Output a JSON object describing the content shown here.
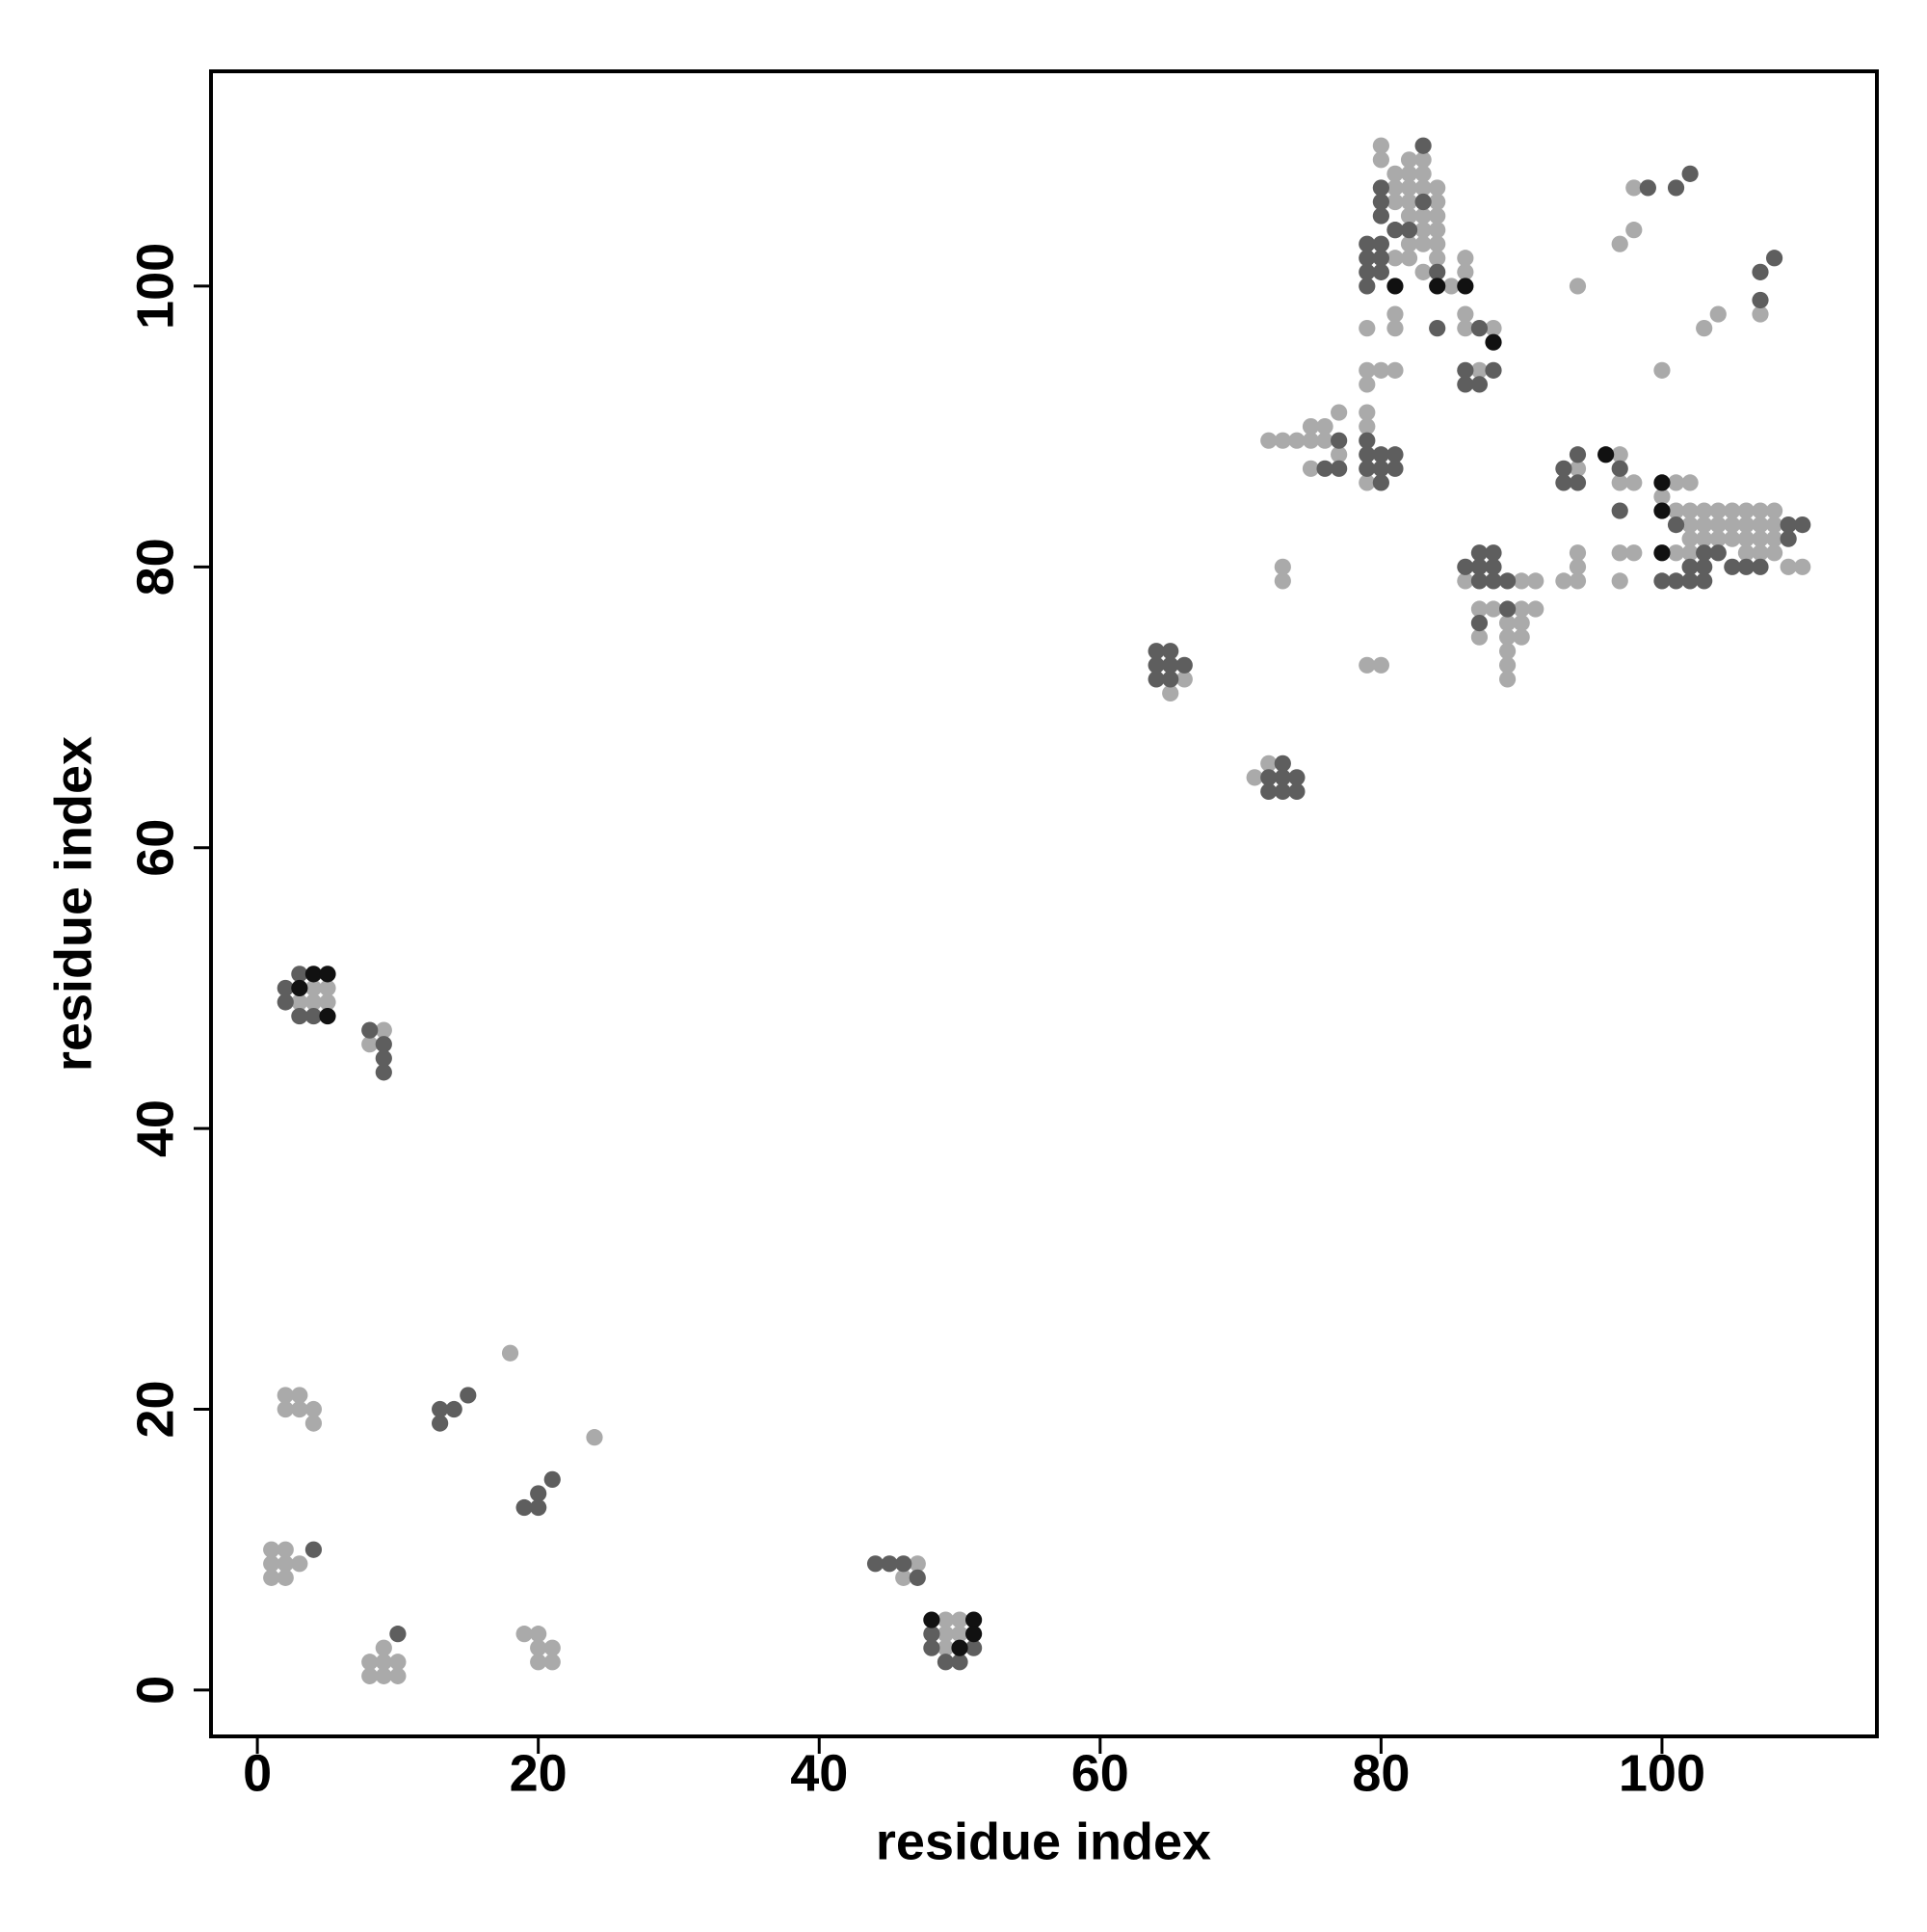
{
  "chart_data": {
    "type": "scatter",
    "x_label": "residue index",
    "y_label": "residue index",
    "xlim": [
      -3.3,
      115.3
    ],
    "ylim": [
      -3.3,
      115.3
    ],
    "xticks": [
      0,
      20,
      40,
      60,
      80,
      100
    ],
    "yticks": [
      0,
      20,
      40,
      60,
      80,
      100
    ],
    "grid": false,
    "series": [
      {
        "color": "#aaaaaa",
        "x": [
          1,
          2,
          1,
          2,
          3,
          1,
          2,
          2,
          3,
          2,
          3,
          4,
          4,
          18,
          24,
          8,
          9,
          10,
          8,
          9,
          10,
          9,
          19,
          20,
          20,
          21,
          20,
          21,
          3,
          4,
          5,
          4,
          5,
          9,
          8,
          47,
          46,
          49,
          50,
          49,
          50,
          49,
          66,
          65,
          71,
          72,
          73,
          73,
          79,
          80,
          72,
          73,
          74,
          75,
          75,
          76,
          77,
          76,
          77,
          75,
          79,
          79,
          79,
          79,
          80,
          81,
          79,
          79,
          81,
          81,
          80,
          80,
          82,
          83,
          81,
          82,
          83,
          84,
          81,
          82,
          83,
          81,
          82,
          84,
          82,
          83,
          84,
          81,
          83,
          84,
          82,
          83,
          84,
          81,
          82,
          84,
          83,
          85,
          86,
          86,
          86,
          86,
          88,
          87,
          86,
          90,
          91,
          87,
          88,
          90,
          91,
          89,
          90,
          87,
          89,
          90,
          89,
          89,
          89,
          94,
          93,
          94,
          94,
          94,
          97,
          97,
          98,
          97,
          98,
          97,
          94,
          97,
          98,
          98,
          100,
          103,
          104,
          107,
          101,
          102,
          100,
          101,
          102,
          103,
          104,
          105,
          106,
          107,
          108,
          102,
          103,
          104,
          105,
          106,
          107,
          108,
          102,
          103,
          104,
          105,
          106,
          107,
          108,
          101,
          102,
          106,
          107,
          108,
          109,
          110
        ],
        "y": [
          10,
          10,
          9,
          9,
          9,
          8,
          8,
          21,
          21,
          20,
          20,
          20,
          19,
          24,
          18,
          2,
          2,
          2,
          1,
          1,
          1,
          3,
          4,
          4,
          3,
          3,
          2,
          2,
          49,
          50,
          50,
          49,
          49,
          47,
          46,
          9,
          8,
          5,
          5,
          4,
          4,
          3,
          72,
          71,
          65,
          66,
          80,
          79,
          73,
          73,
          89,
          89,
          89,
          89,
          90,
          90,
          91,
          89,
          88,
          87,
          91,
          90,
          86,
          94,
          94,
          94,
          93,
          97,
          97,
          98,
          110,
          109,
          109,
          109,
          108,
          108,
          108,
          107,
          107,
          107,
          107,
          106,
          106,
          106,
          105,
          105,
          105,
          104,
          104,
          104,
          103,
          103,
          103,
          102,
          102,
          102,
          101,
          100,
          102,
          101,
          98,
          97,
          97,
          94,
          79,
          79,
          79,
          77,
          77,
          77,
          77,
          76,
          76,
          75,
          75,
          75,
          74,
          73,
          72,
          87,
          79,
          79,
          80,
          81,
          88,
          86,
          86,
          81,
          81,
          79,
          100,
          103,
          104,
          107,
          94,
          97,
          98,
          98,
          86,
          86,
          85,
          84,
          84,
          84,
          84,
          84,
          84,
          84,
          84,
          83,
          83,
          83,
          83,
          83,
          83,
          83,
          82,
          82,
          82,
          82,
          82,
          82,
          82,
          81,
          81,
          81,
          81,
          81,
          80,
          80
        ]
      },
      {
        "color": "#5e5e5e",
        "x": [
          4,
          13,
          14,
          13,
          15,
          19,
          20,
          20,
          21,
          10,
          2,
          2,
          3,
          3,
          4,
          8,
          9,
          9,
          9,
          44,
          45,
          46,
          47,
          48,
          48,
          51,
          49,
          50,
          64,
          65,
          64,
          65,
          66,
          64,
          65,
          73,
          72,
          73,
          74,
          72,
          73,
          74,
          77,
          77,
          76,
          79,
          79,
          80,
          81,
          79,
          80,
          81,
          80,
          83,
          80,
          80,
          80,
          81,
          79,
          80,
          79,
          80,
          79,
          80,
          79,
          82,
          83,
          84,
          84,
          87,
          86,
          88,
          86,
          87,
          86,
          87,
          88,
          87,
          88,
          87,
          88,
          89,
          89,
          87,
          93,
          94,
          93,
          94,
          97,
          97,
          99,
          101,
          102,
          107,
          108,
          107,
          101,
          103,
          104,
          100,
          101,
          102,
          103,
          102,
          103,
          105,
          106,
          107,
          109,
          109,
          110
        ],
        "y": [
          10,
          20,
          20,
          19,
          21,
          13,
          13,
          14,
          15,
          4,
          50,
          49,
          51,
          48,
          48,
          47,
          46,
          45,
          44,
          9,
          9,
          9,
          8,
          4,
          3,
          3,
          2,
          2,
          74,
          74,
          73,
          73,
          73,
          72,
          72,
          66,
          65,
          65,
          65,
          64,
          64,
          64,
          89,
          87,
          87,
          89,
          88,
          88,
          88,
          87,
          87,
          87,
          86,
          110,
          107,
          106,
          105,
          104,
          103,
          103,
          102,
          102,
          101,
          101,
          100,
          104,
          106,
          101,
          97,
          97,
          94,
          94,
          93,
          93,
          80,
          80,
          80,
          81,
          81,
          79,
          79,
          79,
          77,
          76,
          87,
          88,
          86,
          86,
          87,
          84,
          107,
          107,
          108,
          101,
          102,
          99,
          83,
          81,
          81,
          79,
          79,
          79,
          79,
          80,
          80,
          80,
          80,
          80,
          82,
          83,
          83
        ]
      },
      {
        "color": "#111111",
        "x": [
          3,
          4,
          5,
          5,
          48,
          51,
          51,
          50,
          81,
          84,
          86,
          88,
          96,
          100,
          100,
          100
        ],
        "y": [
          50,
          51,
          51,
          48,
          5,
          5,
          4,
          3,
          100,
          100,
          100,
          96,
          88,
          86,
          84,
          81
        ]
      }
    ]
  }
}
